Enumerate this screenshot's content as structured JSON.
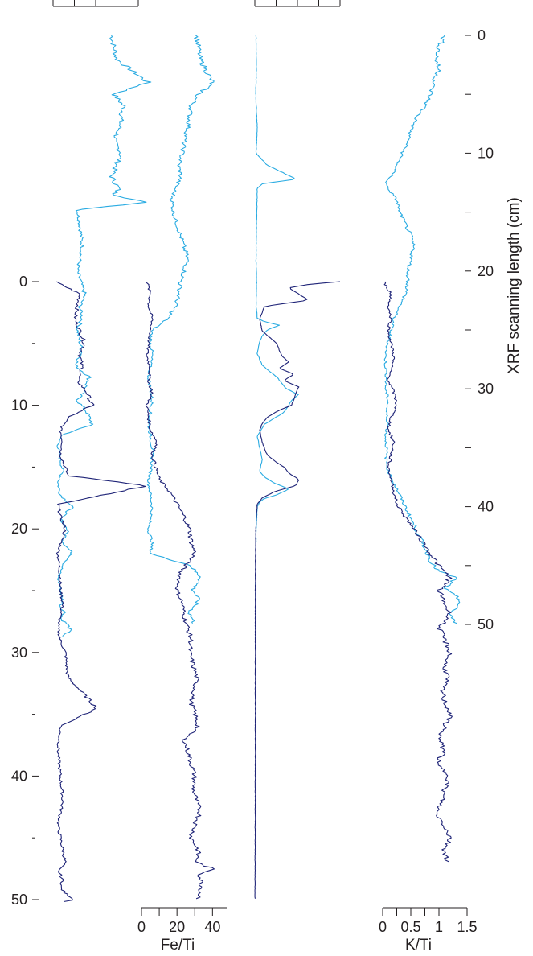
{
  "colors": {
    "core_a": "#29abe2",
    "core_b": "#1e2377",
    "axis": "#231f20"
  },
  "chart_data": {
    "type": "line",
    "orientation": "vertical depth profiles (x = ratio value, y = depth)",
    "left_depth_axis": {
      "label": "",
      "range": [
        0,
        50
      ],
      "ticks": [
        0,
        10,
        20,
        30,
        40,
        50
      ],
      "tick_labels": [
        "0",
        "10",
        "20",
        "30",
        "40",
        "50"
      ]
    },
    "right_depth_axis": {
      "label": "XRF scanning length (cm)",
      "range": [
        0,
        50
      ],
      "ticks": [
        0,
        10,
        20,
        30,
        40,
        50
      ],
      "tick_labels": [
        "0",
        "10",
        "20",
        "30",
        "40",
        "50"
      ]
    },
    "panels": [
      {
        "id": "p1",
        "xlabel": "",
        "xlim": [
          0,
          3.5
        ],
        "scale_position": "top",
        "series": [
          {
            "name": "",
            "color": "#29abe2",
            "depth_axis": "right",
            "x": [
              2.4,
              2.6,
              3.9,
              2.5,
              2.9,
              2.7,
              2.5,
              2.8,
              2.6,
              2.4,
              2.7,
              2.5,
              3.8,
              1.0,
              1.1,
              1.2,
              1.0,
              1.3,
              1.1,
              1.2,
              1.0,
              1.1,
              1.2,
              0.9,
              1.5,
              1.3,
              1.0,
              1.4,
              1.6,
              0.3,
              0.2,
              0.3,
              0.4,
              0.2,
              0.3,
              0.8,
              0.3,
              0.6,
              0.4,
              0.8,
              0.4,
              0.2,
              0.3,
              0.4,
              0.3,
              0.5,
              0.3,
              0.6,
              0.7,
              0.4
            ],
            "y": [
              0,
              2,
              4,
              5,
              6,
              8,
              9,
              10,
              11,
              12,
              13,
              13.5,
              14.2,
              14.8,
              16,
              18,
              20,
              22,
              23,
              24,
              25,
              26,
              27,
              28,
              29,
              30,
              31,
              32,
              33,
              34,
              35,
              36,
              37,
              38,
              39,
              40,
              41,
              42,
              43,
              44,
              45,
              46,
              47,
              48,
              48.5,
              49,
              49.5,
              50,
              50.5,
              51
            ]
          },
          {
            "name": "",
            "color": "#1e2377",
            "depth_axis": "left",
            "x": [
              0.1,
              1.1,
              0.9,
              1.3,
              1.1,
              1.2,
              1.0,
              1.4,
              1.6,
              0.6,
              0.3,
              0.4,
              0.3,
              0.5,
              0.6,
              3.9,
              0.2,
              0.3,
              0.5,
              0.2,
              0.3,
              0.3,
              0.4,
              0.3,
              0.2,
              0.3,
              0.5,
              0.6,
              1.8,
              0.3,
              0.2,
              0.3,
              0.4,
              0.2,
              0.3,
              0.4,
              0.5,
              0.2,
              0.3,
              0.4,
              0.3,
              0.5,
              0.9,
              0.4
            ],
            "y": [
              0,
              1,
              3,
              5,
              6,
              7,
              8,
              9,
              10,
              11,
              12,
              13,
              14,
              15,
              15.7,
              16.5,
              18,
              19,
              20,
              22,
              24,
              25,
              26,
              27,
              28,
              29,
              30,
              32,
              34.5,
              36,
              38,
              40,
              42,
              44,
              45,
              46,
              47,
              47.6,
              48,
              48.5,
              49,
              49.5,
              50,
              50.2
            ]
          }
        ]
      },
      {
        "id": "p2",
        "xlabel": "Fe/Ti",
        "xlim": [
          0,
          48
        ],
        "scale_position": "bottom",
        "x_ticks": [
          0,
          20,
          40
        ],
        "x_tick_labels": [
          "0",
          "20",
          "40"
        ],
        "series": [
          {
            "name": "",
            "color": "#29abe2",
            "depth_axis": "right",
            "x": [
              31,
              33,
              40,
              32,
              28,
              26,
              24,
              23,
              21,
              22,
              19,
              17,
              18,
              20,
              22,
              24,
              26,
              24,
              22,
              21,
              19,
              15,
              6,
              5,
              6,
              5,
              4,
              5,
              6,
              5,
              4,
              5,
              6,
              6,
              5,
              4,
              5,
              6,
              5,
              4,
              6,
              5,
              28,
              30,
              34,
              29,
              32,
              27,
              30
            ],
            "y": [
              0,
              2,
              4,
              5,
              6,
              8,
              9,
              10,
              11,
              12,
              13,
              14,
              15,
              16,
              17,
              18,
              19,
              20,
              21,
              22,
              23,
              24,
              25,
              26,
              27,
              28,
              29,
              30,
              31,
              32,
              33,
              34,
              35,
              36,
              37,
              38,
              39,
              40,
              41,
              42,
              43,
              44,
              45,
              45.5,
              46,
              47,
              48,
              49,
              50
            ]
          },
          {
            "name": "",
            "color": "#1e2377",
            "depth_axis": "left",
            "x": [
              3,
              5,
              4,
              6,
              5,
              4,
              3,
              5,
              4,
              6,
              3,
              4,
              5,
              9,
              6,
              10,
              16,
              20,
              24,
              27,
              28,
              30,
              22,
              20,
              23,
              24,
              26,
              28,
              27,
              29,
              31,
              30,
              28,
              30,
              32,
              24,
              26,
              28,
              30,
              29,
              31,
              33,
              30,
              28,
              32,
              31,
              40,
              33,
              34,
              32
            ],
            "y": [
              0,
              1,
              2,
              3,
              4,
              5,
              6,
              7,
              8,
              9,
              10,
              11,
              12,
              13,
              14,
              16,
              17,
              18,
              19,
              20,
              21,
              22,
              23.5,
              25,
              26,
              27,
              28,
              29,
              30,
              31,
              32,
              33,
              34,
              35,
              36,
              37,
              38,
              39,
              40,
              41,
              42,
              43,
              44,
              45,
              46,
              47,
              47.5,
              48,
              49,
              50
            ]
          }
        ]
      },
      {
        "id": "p3",
        "xlabel": "",
        "xlim": [
          0,
          3.5
        ],
        "scale_position": "top",
        "series": [
          {
            "name": "",
            "color": "#29abe2",
            "depth_axis": "right",
            "x": [
              0.05,
              0.06,
              0.04,
              0.1,
              0.05,
              0.5,
              1.7,
              0.3,
              0.1,
              0.08,
              0.06,
              0.05,
              0.07,
              0.06,
              0.05,
              0.08,
              0.1,
              0.4,
              1.0,
              0.5,
              0.3,
              0.2,
              0.1,
              0.3,
              0.9,
              1.3,
              1.8,
              1.5,
              1.2,
              0.4,
              0.1,
              0.2,
              0.3,
              0.2,
              0.4,
              0.8,
              1.4,
              0.9,
              0.4,
              0.2,
              0.1,
              0.05,
              0.04,
              0.03
            ],
            "y": [
              0,
              3,
              5,
              8,
              10,
              11,
              12.2,
              12.6,
              13,
              15,
              17,
              19,
              21,
              22,
              23,
              23.5,
              24,
              24.3,
              24.6,
              25,
              25.5,
              26,
              27,
              28,
              29,
              30,
              30.5,
              31,
              32,
              33,
              34,
              35,
              36,
              37,
              37.5,
              38,
              38.5,
              39,
              39.3,
              39.6,
              40,
              42,
              45,
              48
            ]
          },
          {
            "name": "",
            "color": "#1e2377",
            "depth_axis": "left",
            "x": [
              3.5,
              2.3,
              1.4,
              2.2,
              0.4,
              0.3,
              0.2,
              0.3,
              0.9,
              1.1,
              1.4,
              1.0,
              1.6,
              1.2,
              1.8,
              1.7,
              1.5,
              0.9,
              0.5,
              0.3,
              0.2,
              0.3,
              0.5,
              0.8,
              1.2,
              1.4,
              1.8,
              1.7,
              0.8,
              0.3,
              0.1,
              0.06,
              0.04,
              0.03,
              0.02,
              0.02,
              0.02,
              0.01,
              0.01
            ],
            "y": [
              0,
              0.2,
              0.5,
              1.5,
              2,
              2.5,
              3,
              4,
              5,
              6,
              6.5,
              7,
              7.5,
              8,
              8.5,
              9,
              10,
              10.5,
              11,
              11.5,
              12,
              13,
              14,
              14.5,
              15,
              15.5,
              16,
              16.5,
              17,
              17.5,
              18,
              19,
              20,
              22,
              25,
              30,
              40,
              48,
              50
            ]
          }
        ]
      },
      {
        "id": "p4",
        "xlabel": "K/Ti",
        "xlim": [
          0,
          1.5
        ],
        "scale_position": "bottom",
        "x_ticks": [
          0,
          0.5,
          1,
          1.5
        ],
        "x_tick_labels": [
          "0",
          "0.5",
          "1",
          "1.5"
        ],
        "series": [
          {
            "name": "",
            "color": "#29abe2",
            "depth_axis": "right",
            "x": [
              1.1,
              1.0,
              0.95,
              1.0,
              0.9,
              0.85,
              0.75,
              0.6,
              0.5,
              0.45,
              0.35,
              0.25,
              0.15,
              0.05,
              0.1,
              0.25,
              0.3,
              0.4,
              0.5,
              0.55,
              0.5,
              0.45,
              0.45,
              0.4,
              0.3,
              0.2,
              0.15,
              0.1,
              0.05,
              0.05,
              0.07,
              0.05,
              0.1,
              0.06,
              0.1,
              0.05,
              0.07,
              0.06,
              0.1,
              0.2,
              0.3,
              0.9,
              1.0,
              1.3,
              1.1,
              1.4,
              1.2,
              1.3
            ],
            "y": [
              0,
              1,
              2,
              3,
              4,
              5,
              6,
              7,
              8,
              9,
              10,
              11,
              12,
              12.5,
              13,
              14,
              15,
              16,
              17,
              18,
              19,
              20,
              21,
              22,
              23,
              24,
              25,
              26,
              27,
              28,
              29,
              30,
              31,
              32,
              33,
              34,
              35,
              36,
              37,
              38,
              39,
              45,
              45.5,
              46,
              47,
              48,
              49,
              50
            ]
          },
          {
            "name": "",
            "color": "#1e2377",
            "depth_axis": "left",
            "x": [
              0.02,
              0.15,
              0.1,
              0.15,
              0.1,
              0.15,
              0.2,
              0.15,
              0.1,
              0.2,
              0.25,
              0.15,
              0.1,
              0.2,
              0.15,
              0.1,
              0.15,
              0.2,
              0.25,
              0.4,
              0.55,
              0.7,
              0.85,
              1.0,
              1.2,
              1.0,
              1.1,
              1.2,
              1.0,
              1.1,
              1.2,
              1.1,
              1.15,
              1.05,
              1.1,
              1.2,
              1.1,
              1.0,
              1.1,
              0.95,
              1.2,
              1.1,
              1.05,
              0.95,
              1.1,
              1.2,
              1.1,
              1.15
            ],
            "y": [
              0,
              1,
              2,
              3,
              4,
              5,
              6,
              7,
              8,
              9,
              10,
              11,
              12,
              13,
              14,
              15,
              16,
              17,
              18,
              19,
              20,
              21,
              22,
              23,
              24,
              25,
              26,
              27,
              28,
              29,
              30,
              31,
              32,
              33,
              34,
              35,
              36,
              37,
              38,
              39,
              40,
              41,
              42,
              43,
              44,
              45,
              46,
              47
            ]
          }
        ]
      }
    ]
  }
}
